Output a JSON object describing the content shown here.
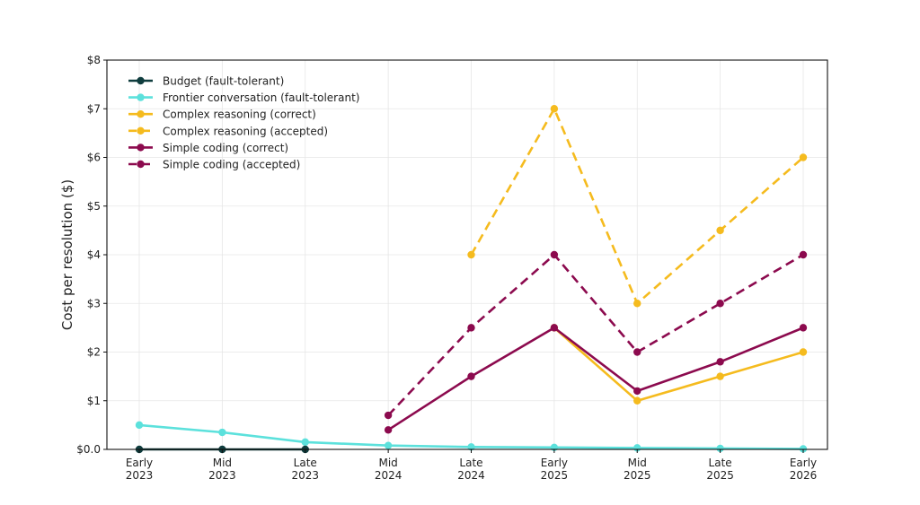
{
  "chart_data": {
    "type": "line",
    "title": "",
    "xlabel": "",
    "ylabel": "Cost per resolution ($)",
    "ylim": [
      0,
      8
    ],
    "yticks": [
      0,
      1,
      2,
      3,
      4,
      5,
      6,
      7,
      8
    ],
    "ytick_labels": [
      "$0.0",
      "$1",
      "$2",
      "$3",
      "$4",
      "$5",
      "$6",
      "$7",
      "$8"
    ],
    "categories": [
      [
        "Early",
        "2023"
      ],
      [
        "Mid",
        "2023"
      ],
      [
        "Late",
        "2023"
      ],
      [
        "Mid",
        "2024"
      ],
      [
        "Late",
        "2024"
      ],
      [
        "Early",
        "2025"
      ],
      [
        "Mid",
        "2025"
      ],
      [
        "Late",
        "2025"
      ],
      [
        "Early",
        "2026"
      ]
    ],
    "grid": true,
    "legend_position": "top-left",
    "series": [
      {
        "name": "Budget (fault-tolerant)",
        "color": "#0f3d3e",
        "dashed": false,
        "values": [
          0.0,
          0.0,
          0.0,
          null,
          null,
          null,
          null,
          null,
          null
        ]
      },
      {
        "name": "Frontier conversation (fault-tolerant)",
        "color": "#5ce1dc",
        "dashed": false,
        "values": [
          0.5,
          0.35,
          0.15,
          0.08,
          0.05,
          0.04,
          0.03,
          0.02,
          0.01
        ]
      },
      {
        "name": "Complex reasoning (correct)",
        "color": "#f5bb1e",
        "dashed": false,
        "values": [
          null,
          null,
          null,
          null,
          null,
          2.5,
          1.0,
          1.5,
          2.0
        ]
      },
      {
        "name": "Complex reasoning (accepted)",
        "color": "#f5bb1e",
        "dashed": true,
        "values": [
          null,
          null,
          null,
          null,
          4.0,
          7.0,
          3.0,
          4.5,
          6.0
        ]
      },
      {
        "name": "Simple coding (correct)",
        "color": "#8c0a4e",
        "dashed": false,
        "values": [
          null,
          null,
          null,
          0.4,
          1.5,
          2.5,
          1.2,
          1.8,
          2.5
        ]
      },
      {
        "name": "Simple coding (accepted)",
        "color": "#8c0a4e",
        "dashed": true,
        "values": [
          null,
          null,
          null,
          0.7,
          2.5,
          4.0,
          2.0,
          3.0,
          4.0
        ]
      }
    ]
  }
}
